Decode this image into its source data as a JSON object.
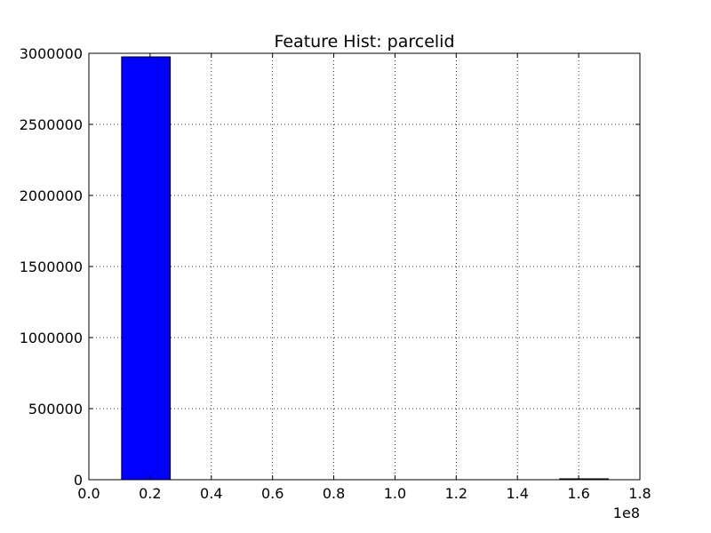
{
  "chart_data": {
    "type": "bar",
    "title": "Feature Hist: parcelid",
    "xlabel": "",
    "ylabel": "",
    "x_offset_label": "1e8",
    "xlim": [
      0.0,
      1.8
    ],
    "ylim": [
      0,
      3000000
    ],
    "x_ticks": [
      "0.0",
      "0.2",
      "0.4",
      "0.6",
      "0.8",
      "1.0",
      "1.2",
      "1.4",
      "1.6",
      "1.8"
    ],
    "y_ticks": [
      "0",
      "500000",
      "1000000",
      "1500000",
      "2000000",
      "2500000",
      "3000000"
    ],
    "grid": true,
    "bins": [
      {
        "x0": 0.107,
        "x1": 0.266,
        "count": 2975000
      },
      {
        "x0": 0.266,
        "x1": 0.425,
        "count": 0
      },
      {
        "x0": 0.425,
        "x1": 0.584,
        "count": 0
      },
      {
        "x0": 0.584,
        "x1": 0.743,
        "count": 0
      },
      {
        "x0": 0.743,
        "x1": 0.902,
        "count": 0
      },
      {
        "x0": 0.902,
        "x1": 1.061,
        "count": 0
      },
      {
        "x0": 1.061,
        "x1": 1.22,
        "count": 0
      },
      {
        "x0": 1.22,
        "x1": 1.379,
        "count": 0
      },
      {
        "x0": 1.379,
        "x1": 1.538,
        "count": 0
      },
      {
        "x0": 1.538,
        "x1": 1.697,
        "count": 3000
      }
    ],
    "bar_color": "#0000ff",
    "edge_color": "#000000"
  }
}
